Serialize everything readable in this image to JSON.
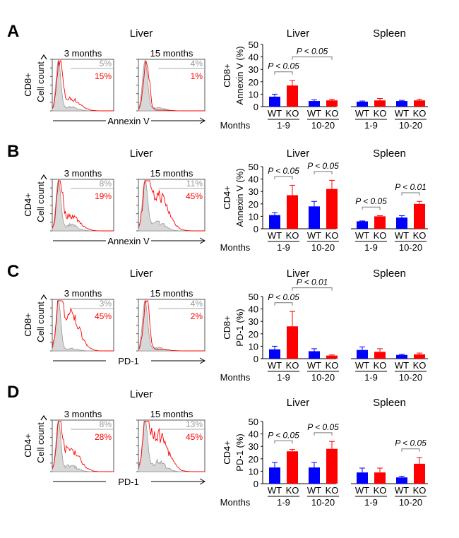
{
  "panels": [
    {
      "letter": "A",
      "tissue_title": "Liver",
      "cell_type": "CD8+",
      "count_label": "Cell count",
      "marker": "Annexin V",
      "histograms": [
        {
          "label": "3 months",
          "control_pct": "5%",
          "ko_pct": "15%"
        },
        {
          "label": "15 months",
          "control_pct": "4%",
          "ko_pct": "1%"
        }
      ]
    },
    {
      "letter": "B",
      "tissue_title": "Liver",
      "cell_type": "CD4+",
      "count_label": "Cell count",
      "marker": "Annexin V",
      "histograms": [
        {
          "label": "3 months",
          "control_pct": "8%",
          "ko_pct": "19%"
        },
        {
          "label": "15 months",
          "control_pct": "11%",
          "ko_pct": "45%"
        }
      ]
    },
    {
      "letter": "C",
      "tissue_title": "Liver",
      "cell_type": "CD8+",
      "count_label": "Cell count",
      "marker": "PD-1",
      "histograms": [
        {
          "label": "3 months",
          "control_pct": "3%",
          "ko_pct": "45%"
        },
        {
          "label": "15 months",
          "control_pct": "4%",
          "ko_pct": "2%"
        }
      ]
    },
    {
      "letter": "D",
      "tissue_title": "Liver",
      "cell_type": "CD4+",
      "count_label": "Cell count",
      "marker": "PD-1",
      "histograms": [
        {
          "label": "3 months",
          "control_pct": "8%",
          "ko_pct": "28%"
        },
        {
          "label": "15 months",
          "control_pct": "13%",
          "ko_pct": "45%"
        }
      ]
    }
  ],
  "colors": {
    "WT": "#0000ff",
    "KO": "#ff0000",
    "control_hist": "#999999",
    "ko_hist": "#ff0000"
  },
  "chart_data": [
    {
      "type": "bar",
      "cell_type": "CD8+",
      "ylabel": "Annexin V (%)",
      "ylim": [
        0,
        50
      ],
      "yticks": [
        "0",
        "10",
        "20",
        "30",
        "40",
        "50"
      ],
      "xgroup_label": "Months",
      "series": [
        "WT",
        "KO"
      ],
      "facets": [
        {
          "title": "Liver",
          "groups": [
            {
              "months": "1-9",
              "WT": {
                "mean": 8,
                "err": 2
              },
              "KO": {
                "mean": 17,
                "err": 4
              }
            },
            {
              "months": "10-20",
              "WT": {
                "mean": 4.5,
                "err": 1
              },
              "KO": {
                "mean": 5,
                "err": 1
              }
            }
          ]
        },
        {
          "title": "Spleen",
          "groups": [
            {
              "months": "1-9",
              "WT": {
                "mean": 4,
                "err": 0.5
              },
              "KO": {
                "mean": 5,
                "err": 1.5
              }
            },
            {
              "months": "10-20",
              "WT": {
                "mean": 4.5,
                "err": 0.5
              },
              "KO": {
                "mean": 5,
                "err": 1
              }
            }
          ]
        }
      ],
      "comparisons": [
        {
          "facet": 0,
          "bars": [
            0,
            1
          ],
          "label": "P < 0.05"
        },
        {
          "facet": 0,
          "bars": [
            1,
            3
          ],
          "label": "P < 0.05"
        }
      ]
    },
    {
      "type": "bar",
      "cell_type": "CD4+",
      "ylabel": "Annexin V (%)",
      "ylim": [
        0,
        50
      ],
      "yticks": [
        "0",
        "10",
        "20",
        "30",
        "40",
        "50"
      ],
      "xgroup_label": "Months",
      "series": [
        "WT",
        "KO"
      ],
      "facets": [
        {
          "title": "Liver",
          "groups": [
            {
              "months": "1-9",
              "WT": {
                "mean": 11,
                "err": 2
              },
              "KO": {
                "mean": 27,
                "err": 8
              }
            },
            {
              "months": "10-20",
              "WT": {
                "mean": 18,
                "err": 4
              },
              "KO": {
                "mean": 32,
                "err": 7
              }
            }
          ]
        },
        {
          "title": "Spleen",
          "groups": [
            {
              "months": "1-9",
              "WT": {
                "mean": 6,
                "err": 0.3
              },
              "KO": {
                "mean": 10,
                "err": 0.5
              }
            },
            {
              "months": "10-20",
              "WT": {
                "mean": 9,
                "err": 1.5
              },
              "KO": {
                "mean": 20,
                "err": 2
              }
            }
          ]
        }
      ],
      "comparisons": [
        {
          "facet": 0,
          "bars": [
            0,
            1
          ],
          "label": "P < 0.05"
        },
        {
          "facet": 0,
          "bars": [
            2,
            3
          ],
          "label": "P < 0.05"
        },
        {
          "facet": 1,
          "bars": [
            0,
            1
          ],
          "label": "P < 0.05"
        },
        {
          "facet": 1,
          "bars": [
            2,
            3
          ],
          "label": "P < 0.01"
        }
      ]
    },
    {
      "type": "bar",
      "cell_type": "CD8+",
      "ylabel": "PD-1 (%)",
      "ylim": [
        0,
        50
      ],
      "yticks": [
        "0",
        "10",
        "20",
        "30",
        "40",
        "50"
      ],
      "xgroup_label": "Months",
      "series": [
        "WT",
        "KO"
      ],
      "facets": [
        {
          "title": "Liver",
          "groups": [
            {
              "months": "1-9",
              "WT": {
                "mean": 7.5,
                "err": 2.5
              },
              "KO": {
                "mean": 26,
                "err": 12
              }
            },
            {
              "months": "10-20",
              "WT": {
                "mean": 6,
                "err": 2
              },
              "KO": {
                "mean": 2.5,
                "err": 0.5
              }
            }
          ]
        },
        {
          "title": "Spleen",
          "groups": [
            {
              "months": "1-9",
              "WT": {
                "mean": 7,
                "err": 2.5
              },
              "KO": {
                "mean": 5.5,
                "err": 2.5
              }
            },
            {
              "months": "10-20",
              "WT": {
                "mean": 3,
                "err": 0.5
              },
              "KO": {
                "mean": 3.5,
                "err": 1
              }
            }
          ]
        }
      ],
      "comparisons": [
        {
          "facet": 0,
          "bars": [
            0,
            1
          ],
          "label": "P < 0.05"
        },
        {
          "facet": 0,
          "bars": [
            1,
            3
          ],
          "label": "P < 0.01"
        }
      ]
    },
    {
      "type": "bar",
      "cell_type": "CD4+",
      "ylabel": "PD-1 (%)",
      "ylim": [
        0,
        50
      ],
      "yticks": [
        "0",
        "10",
        "20",
        "30",
        "40",
        "50"
      ],
      "xgroup_label": "Months",
      "series": [
        "WT",
        "KO"
      ],
      "facets": [
        {
          "title": "Liver",
          "groups": [
            {
              "months": "1-9",
              "WT": {
                "mean": 13,
                "err": 4
              },
              "KO": {
                "mean": 26,
                "err": 1.5
              }
            },
            {
              "months": "10-20",
              "WT": {
                "mean": 13,
                "err": 4
              },
              "KO": {
                "mean": 28,
                "err": 6
              }
            }
          ]
        },
        {
          "title": "Spleen",
          "groups": [
            {
              "months": "1-9",
              "WT": {
                "mean": 9,
                "err": 3.5
              },
              "KO": {
                "mean": 9,
                "err": 3.5
              }
            },
            {
              "months": "10-20",
              "WT": {
                "mean": 5,
                "err": 1
              },
              "KO": {
                "mean": 16,
                "err": 5
              }
            }
          ]
        }
      ],
      "comparisons": [
        {
          "facet": 0,
          "bars": [
            0,
            1
          ],
          "label": "P < 0.05"
        },
        {
          "facet": 0,
          "bars": [
            2,
            3
          ],
          "label": "P < 0.05"
        },
        {
          "facet": 1,
          "bars": [
            2,
            3
          ],
          "label": "P < 0.05"
        }
      ]
    }
  ]
}
